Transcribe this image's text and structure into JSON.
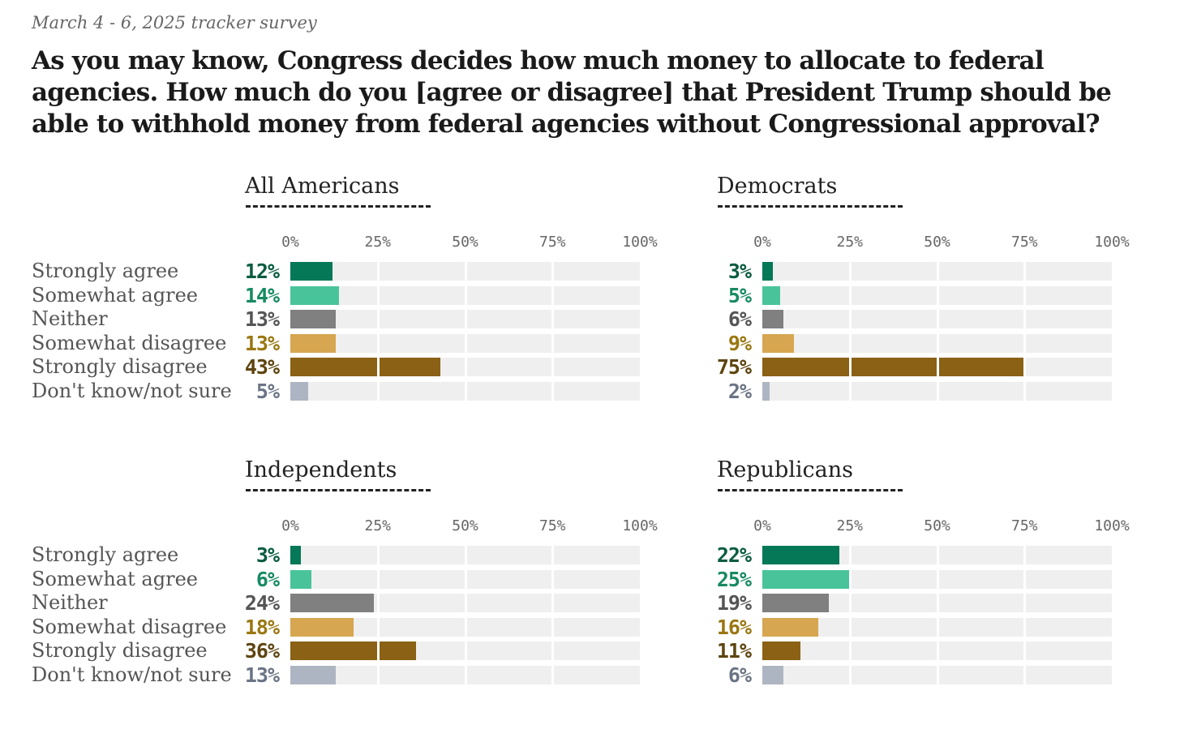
{
  "subtitle": "March 4 - 6, 2025 tracker survey",
  "title": "As you may know, Congress decides how much money to allocate to federal agencies. How much do you [agree or disagree] that President Trump should be able to withhold money from federal agencies without Congressional approval?",
  "colors": {
    "bars": [
      "#047857",
      "#49c49a",
      "#808080",
      "#d6a650",
      "#8a6115",
      "#aeb5c2"
    ],
    "labels": [
      "#0a5c40",
      "#178a62",
      "#555555",
      "#9a7712",
      "#5e4410",
      "#6b7484"
    ],
    "track": "#efefef"
  },
  "chart_data": [
    {
      "type": "bar",
      "title": "All Americans",
      "categories": [
        "Strongly agree",
        "Somewhat agree",
        "Neither",
        "Somewhat disagree",
        "Strongly disagree",
        "Don't know/not sure"
      ],
      "values": [
        12,
        14,
        13,
        13,
        43,
        5
      ],
      "value_labels": [
        "12%",
        "14%",
        "13%",
        "13%",
        "43%",
        "5%"
      ],
      "ticks": [
        "0%",
        "25%",
        "50%",
        "75%",
        "100%"
      ],
      "xlim": [
        0,
        100
      ]
    },
    {
      "type": "bar",
      "title": "Democrats",
      "categories": [
        "Strongly agree",
        "Somewhat agree",
        "Neither",
        "Somewhat disagree",
        "Strongly disagree",
        "Don't know/not sure"
      ],
      "values": [
        3,
        5,
        6,
        9,
        75,
        2
      ],
      "value_labels": [
        "3%",
        "5%",
        "6%",
        "9%",
        "75%",
        "2%"
      ],
      "ticks": [
        "0%",
        "25%",
        "50%",
        "75%",
        "100%"
      ],
      "xlim": [
        0,
        100
      ]
    },
    {
      "type": "bar",
      "title": "Independents",
      "categories": [
        "Strongly agree",
        "Somewhat agree",
        "Neither",
        "Somewhat disagree",
        "Strongly disagree",
        "Don't know/not sure"
      ],
      "values": [
        3,
        6,
        24,
        18,
        36,
        13
      ],
      "value_labels": [
        "3%",
        "6%",
        "24%",
        "18%",
        "36%",
        "13%"
      ],
      "ticks": [
        "0%",
        "25%",
        "50%",
        "75%",
        "100%"
      ],
      "xlim": [
        0,
        100
      ]
    },
    {
      "type": "bar",
      "title": "Republicans",
      "categories": [
        "Strongly agree",
        "Somewhat agree",
        "Neither",
        "Somewhat disagree",
        "Strongly disagree",
        "Don't know/not sure"
      ],
      "values": [
        22,
        25,
        19,
        16,
        11,
        6
      ],
      "value_labels": [
        "22%",
        "25%",
        "19%",
        "16%",
        "11%",
        "6%"
      ],
      "ticks": [
        "0%",
        "25%",
        "50%",
        "75%",
        "100%"
      ],
      "xlim": [
        0,
        100
      ]
    }
  ]
}
